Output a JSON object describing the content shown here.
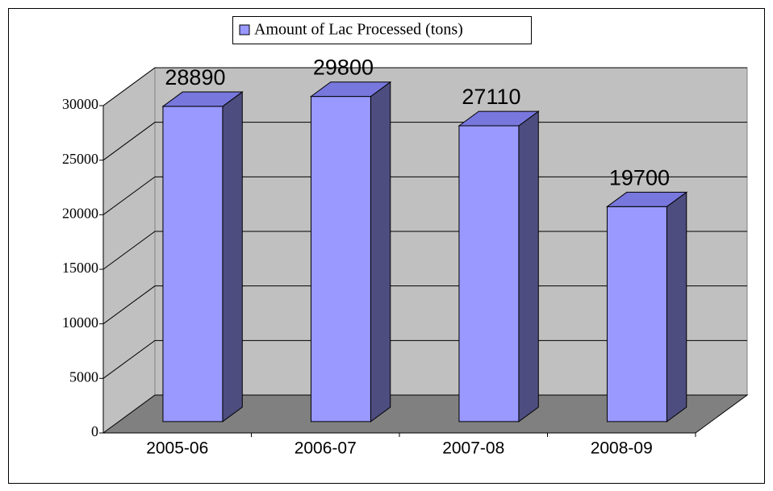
{
  "chart_data": {
    "type": "bar3d",
    "categories": [
      "2005-06",
      "2006-07",
      "2007-08",
      "2008-09"
    ],
    "series": [
      {
        "name": "Amount of Lac Processed (tons)",
        "color": "#9999ff",
        "values": [
          28890,
          29800,
          27110,
          19700
        ]
      }
    ],
    "ylim": [
      0,
      30000
    ],
    "yticks": [
      0,
      5000,
      10000,
      15000,
      20000,
      25000,
      30000
    ],
    "grid": true,
    "legend": "top"
  }
}
